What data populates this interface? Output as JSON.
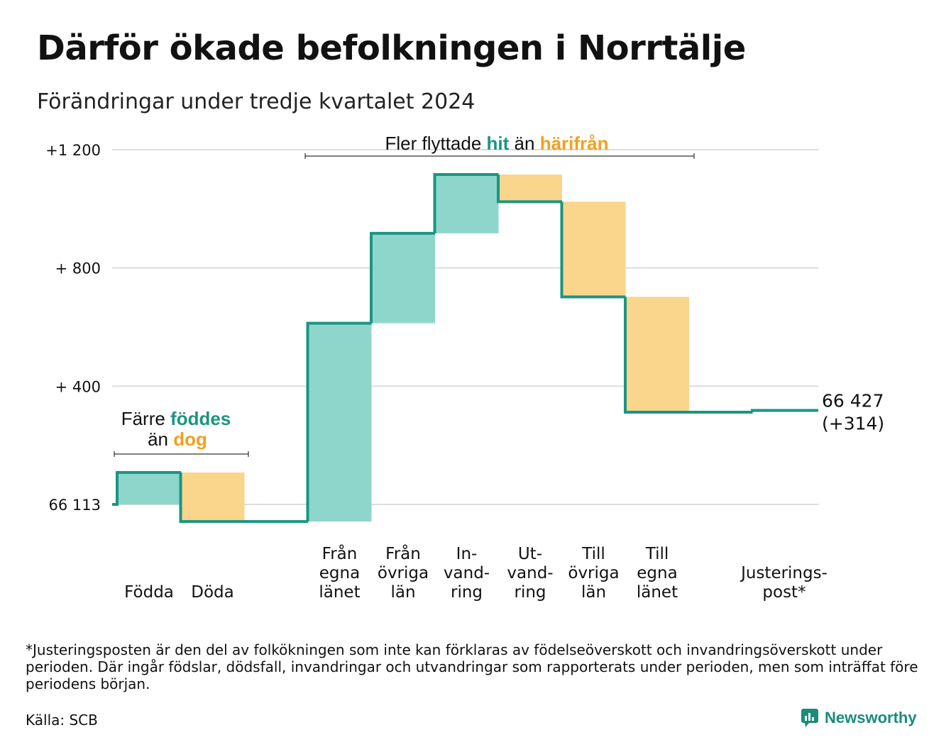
{
  "title": "Därför ökade befolkningen i Norrtälje",
  "subtitle": "Förändringar under tredje kvartalet 2024",
  "colors": {
    "increase": "#8ed6cc",
    "decrease": "#fad58c",
    "line": "#1b9582",
    "accent_teal": "#1b9582",
    "accent_orange": "#f0a020"
  },
  "chart_data": {
    "type": "waterfall",
    "base_label": "66 113",
    "y_ticks": [
      {
        "value": 0,
        "label": "66 113"
      },
      {
        "value": 400,
        "label": "+  400"
      },
      {
        "value": 800,
        "label": "+  800"
      },
      {
        "value": 1200,
        "label": "+1 200"
      }
    ],
    "ylim": [
      -60,
      1220
    ],
    "grid": true,
    "steps": [
      {
        "label": [
          "Födda"
        ],
        "change": 108,
        "kind": "increase"
      },
      {
        "label": [
          "Döda"
        ],
        "change": -166,
        "kind": "decrease"
      },
      {
        "label": [],
        "change": 0,
        "kind": "gap"
      },
      {
        "label": [
          "Från",
          "egna",
          "länet"
        ],
        "change": 671,
        "kind": "increase"
      },
      {
        "label": [
          "Från",
          "övriga",
          "län"
        ],
        "change": 304,
        "kind": "increase"
      },
      {
        "label": [
          "In-",
          "vand-",
          "ring"
        ],
        "change": 199,
        "kind": "increase"
      },
      {
        "label": [
          "Ut-",
          "vand-",
          "ring"
        ],
        "change": -92,
        "kind": "decrease"
      },
      {
        "label": [
          "Till",
          "övriga",
          "län"
        ],
        "change": -322,
        "kind": "decrease"
      },
      {
        "label": [
          "Till",
          "egna",
          "länet"
        ],
        "change": -390,
        "kind": "decrease"
      },
      {
        "label": [],
        "change": 0,
        "kind": "gap"
      },
      {
        "label": [
          "Justerings-",
          "post*"
        ],
        "change": 6,
        "kind": "adjust"
      }
    ],
    "end_value": "66 427",
    "end_change": "(+314)",
    "annotations": {
      "births_deaths": {
        "line1_pre": "Färre ",
        "line1_hl": "föddes",
        "line2_pre": "än ",
        "line2_hl": "dog"
      },
      "migration": {
        "pre": "Fler flyttade ",
        "hl1": "hit",
        "mid": " än ",
        "hl2": "härifrån"
      }
    }
  },
  "footnote": "*Justeringsposten är den del av folkökningen som inte kan förklaras av födelseöverskott och invandringsöverskott under perioden. Där ingår födslar, dödsfall, invandringar och utvandringar som rapporterats under perioden, men som inträffat före periodens början.",
  "source": "Källa: SCB",
  "brand": "Newsworthy"
}
